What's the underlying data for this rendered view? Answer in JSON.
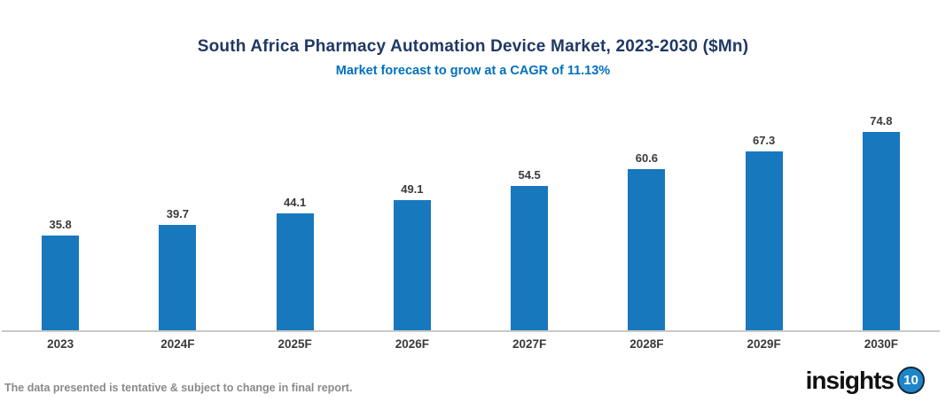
{
  "header": {
    "title": "South Africa Pharmacy Automation Device Market, 2023-2030 ($Mn)",
    "subtitle": "Market forecast to grow at a CAGR of 11.13%"
  },
  "chart_data": {
    "type": "bar",
    "categories": [
      "2023",
      "2024F",
      "2025F",
      "2026F",
      "2027F",
      "2028F",
      "2029F",
      "2030F"
    ],
    "values": [
      35.8,
      39.7,
      44.1,
      49.1,
      54.5,
      60.6,
      67.3,
      74.8
    ],
    "title": "South Africa Pharmacy Automation Device Market, 2023-2030 ($Mn)",
    "subtitle": "Market forecast to grow at a CAGR of 11.13%",
    "xlabel": "",
    "ylabel": "",
    "ylim": [
      0,
      80
    ],
    "grid": false,
    "legend": null,
    "y_axis_shown": false,
    "value_labels_shown": true
  },
  "footer": {
    "disclaimer": "The data presented is tentative & subject to change in final report.",
    "logo": {
      "wordmark": "insights",
      "badge": "10"
    }
  },
  "colors": {
    "title_text": "#1F3864",
    "subtitle_text": "#0070C0",
    "bar": "#1878BE",
    "axis_line": "#C9C9C9",
    "data_label_text": "#3A3A3A",
    "footer_text": "#8A8A8A",
    "logo_badge": "#1D86C8"
  }
}
